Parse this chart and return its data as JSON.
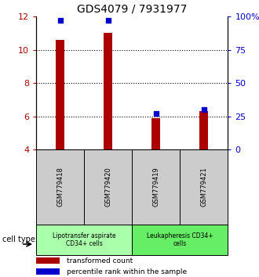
{
  "title": "GDS4079 / 7931977",
  "samples": [
    "GSM779418",
    "GSM779420",
    "GSM779419",
    "GSM779421"
  ],
  "transformed_counts": [
    10.6,
    11.0,
    5.9,
    6.3
  ],
  "percentile_ranks": [
    97,
    97,
    27,
    30
  ],
  "ylim_left": [
    4,
    12
  ],
  "ylim_right": [
    0,
    100
  ],
  "yticks_left": [
    4,
    6,
    8,
    10,
    12
  ],
  "yticks_right": [
    0,
    25,
    50,
    75,
    100
  ],
  "ytick_labels_right": [
    "0",
    "25",
    "50",
    "75",
    "100%"
  ],
  "bar_color": "#aa0000",
  "marker_color": "#0000cc",
  "bar_width": 0.18,
  "groups": [
    {
      "label": "Lipotransfer aspirate\nCD34+ cells",
      "color": "#aaffaa"
    },
    {
      "label": "Leukapheresis CD34+\ncells",
      "color": "#66ee66"
    }
  ],
  "sample_box_color": "#cccccc",
  "cell_type_label": "cell type",
  "legend_red": "transformed count",
  "legend_blue": "percentile rank within the sample",
  "grid_dotted_at": [
    6,
    8,
    10
  ],
  "title_fontsize": 10,
  "tick_fontsize": 8,
  "label_fontsize": 6,
  "group_fontsize": 5.5,
  "legend_fontsize": 6.5
}
